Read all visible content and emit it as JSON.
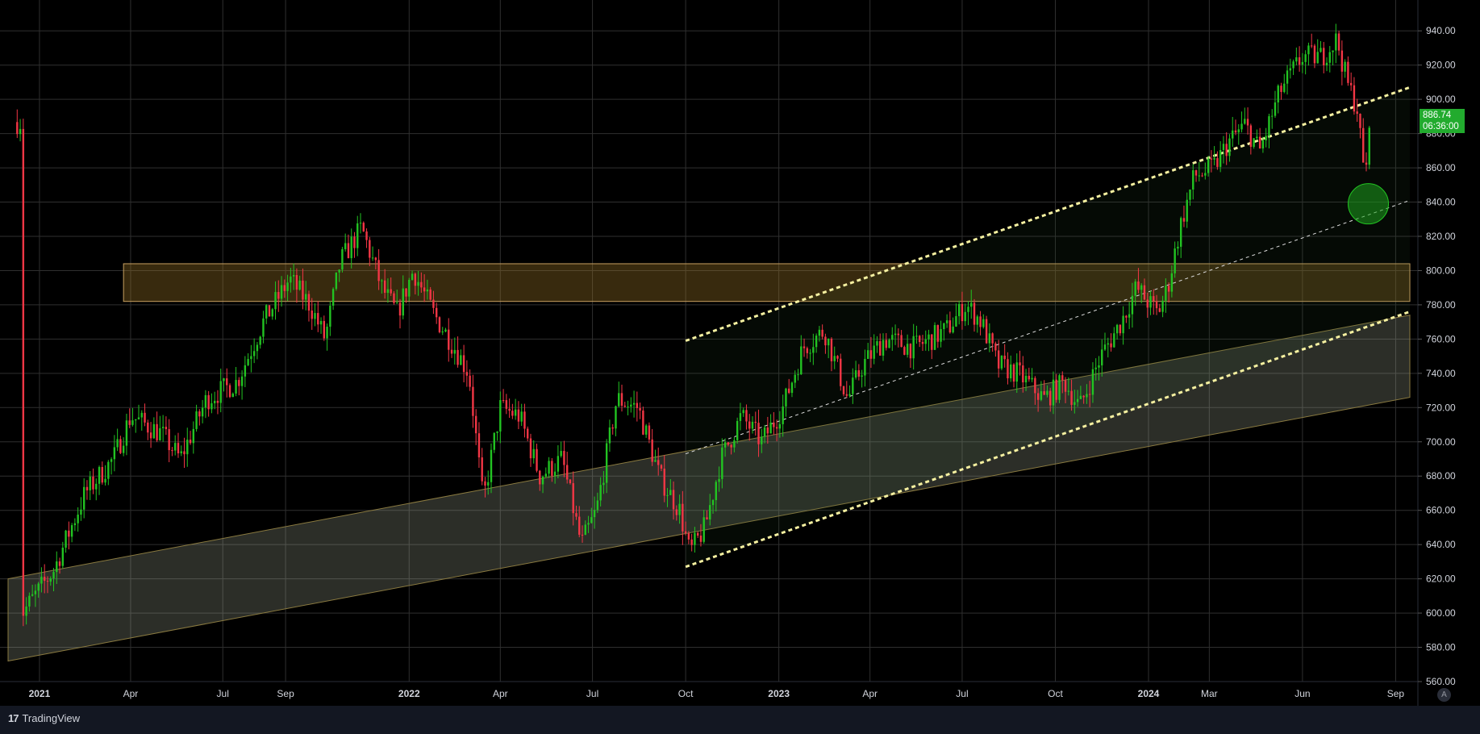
{
  "chart_data": {
    "type": "candlestick",
    "title": "",
    "xlabel": "",
    "ylabel": "",
    "ylim": [
      560,
      950
    ],
    "y_ticks": [
      "560.00",
      "580.00",
      "600.00",
      "620.00",
      "640.00",
      "660.00",
      "680.00",
      "700.00",
      "720.00",
      "740.00",
      "760.00",
      "780.00",
      "800.00",
      "820.00",
      "840.00",
      "860.00",
      "880.00",
      "900.00",
      "920.00",
      "940.00"
    ],
    "x_ticks": [
      {
        "label": "2021",
        "date": "2021-01-01",
        "bold": true
      },
      {
        "label": "Apr",
        "date": "2021-04-01",
        "bold": false
      },
      {
        "label": "Jul",
        "date": "2021-07-01",
        "bold": false
      },
      {
        "label": "Sep",
        "date": "2021-09-01",
        "bold": false
      },
      {
        "label": "2022",
        "date": "2022-01-01",
        "bold": true
      },
      {
        "label": "Apr",
        "date": "2022-04-01",
        "bold": false
      },
      {
        "label": "Jul",
        "date": "2022-07-01",
        "bold": false
      },
      {
        "label": "Oct",
        "date": "2022-10-01",
        "bold": false
      },
      {
        "label": "2023",
        "date": "2023-01-01",
        "bold": true
      },
      {
        "label": "Apr",
        "date": "2023-04-01",
        "bold": false
      },
      {
        "label": "Jul",
        "date": "2023-07-01",
        "bold": false
      },
      {
        "label": "Oct",
        "date": "2023-10-01",
        "bold": false
      },
      {
        "label": "2024",
        "date": "2024-01-01",
        "bold": true
      },
      {
        "label": "Mar",
        "date": "2024-03-01",
        "bold": false
      },
      {
        "label": "Jun",
        "date": "2024-06-01",
        "bold": false
      },
      {
        "label": "Sep",
        "date": "2024-09-01",
        "bold": false
      }
    ],
    "price_path": [
      [
        "2020-12-15",
        600
      ],
      [
        "2021-01-15",
        625
      ],
      [
        "2021-02-15",
        670
      ],
      [
        "2021-03-15",
        690
      ],
      [
        "2021-04-01",
        715
      ],
      [
        "2021-05-01",
        705
      ],
      [
        "2021-05-20",
        690
      ],
      [
        "2021-06-15",
        725
      ],
      [
        "2021-07-15",
        735
      ],
      [
        "2021-08-10",
        770
      ],
      [
        "2021-09-05",
        795
      ],
      [
        "2021-09-25",
        780
      ],
      [
        "2021-10-10",
        760
      ],
      [
        "2021-10-25",
        805
      ],
      [
        "2021-11-15",
        825
      ],
      [
        "2021-12-05",
        790
      ],
      [
        "2021-12-20",
        775
      ],
      [
        "2022-01-05",
        800
      ],
      [
        "2022-01-25",
        775
      ],
      [
        "2022-02-15",
        755
      ],
      [
        "2022-03-01",
        740
      ],
      [
        "2022-03-15",
        665
      ],
      [
        "2022-04-01",
        720
      ],
      [
        "2022-04-20",
        715
      ],
      [
        "2022-05-10",
        680
      ],
      [
        "2022-06-01",
        690
      ],
      [
        "2022-06-20",
        640
      ],
      [
        "2022-07-05",
        660
      ],
      [
        "2022-07-25",
        725
      ],
      [
        "2022-08-15",
        720
      ],
      [
        "2022-09-05",
        680
      ],
      [
        "2022-09-25",
        660
      ],
      [
        "2022-10-05",
        635
      ],
      [
        "2022-10-20",
        650
      ],
      [
        "2022-11-05",
        690
      ],
      [
        "2022-11-25",
        715
      ],
      [
        "2022-12-15",
        700
      ],
      [
        "2023-01-05",
        720
      ],
      [
        "2023-01-25",
        755
      ],
      [
        "2023-02-15",
        765
      ],
      [
        "2023-03-10",
        725
      ],
      [
        "2023-03-25",
        745
      ],
      [
        "2023-04-15",
        760
      ],
      [
        "2023-05-15",
        755
      ],
      [
        "2023-06-15",
        765
      ],
      [
        "2023-07-05",
        780
      ],
      [
        "2023-07-20",
        770
      ],
      [
        "2023-08-05",
        745
      ],
      [
        "2023-08-25",
        740
      ],
      [
        "2023-09-20",
        725
      ],
      [
        "2023-10-10",
        735
      ],
      [
        "2023-10-25",
        720
      ],
      [
        "2023-11-15",
        750
      ],
      [
        "2023-12-05",
        770
      ],
      [
        "2023-12-20",
        790
      ],
      [
        "2024-01-10",
        775
      ],
      [
        "2024-01-20",
        790
      ],
      [
        "2024-02-01",
        825
      ],
      [
        "2024-02-15",
        855
      ],
      [
        "2024-03-05",
        860
      ],
      [
        "2024-03-20",
        875
      ],
      [
        "2024-04-05",
        885
      ],
      [
        "2024-04-20",
        870
      ],
      [
        "2024-05-10",
        905
      ],
      [
        "2024-06-01",
        925
      ],
      [
        "2024-06-20",
        925
      ],
      [
        "2024-07-05",
        935
      ],
      [
        "2024-07-15",
        910
      ],
      [
        "2024-07-25",
        895
      ],
      [
        "2024-08-01",
        855
      ],
      [
        "2024-08-08",
        886.74
      ]
    ],
    "last_price": "886.74",
    "countdown": "06:36:00",
    "colors": {
      "up": "#22c322",
      "down": "#f23645",
      "grid": "#2f2f2f",
      "trendline": "#f5f0a0",
      "price_tag": "#22ab2e"
    },
    "drawings": {
      "resistance_zone": {
        "from": "2021-03-25",
        "to": "2024-09-15",
        "y_low": 782,
        "y_high": 804,
        "fill": "rgba(160,120,40,0.35)",
        "stroke": "#c8a060"
      },
      "ascending_band": {
        "start": {
          "date": "2020-12-01",
          "y_low": 572,
          "y_high": 620
        },
        "end": {
          "date": "2024-09-15",
          "y_low": 726,
          "y_high": 774
        },
        "fill": "rgba(200,210,180,0.22)",
        "stroke": "#8a7a40"
      },
      "channel_upper": {
        "from": {
          "date": "2022-10-01",
          "y": 759
        },
        "to": {
          "date": "2024-09-15",
          "y": 907
        }
      },
      "channel_mid": {
        "from": {
          "date": "2022-10-01",
          "y": 693
        },
        "to": {
          "date": "2024-09-15",
          "y": 841
        }
      },
      "channel_lower": {
        "from": {
          "date": "2022-10-01",
          "y": 627
        },
        "to": {
          "date": "2024-09-15",
          "y": 776
        }
      },
      "highlight_circle": {
        "date": "2024-08-05",
        "y": 839,
        "fill": "rgba(30,160,30,0.55)",
        "stroke": "#22c322"
      }
    }
  },
  "footer": {
    "brand": "TradingView",
    "brand_mark": "17",
    "auto_label": "A"
  }
}
